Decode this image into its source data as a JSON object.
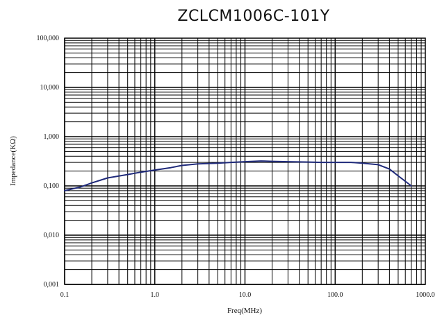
{
  "chart_data": {
    "type": "line",
    "title": "ZCLCM1006C-101Y",
    "xlabel": "Freq(MHz)",
    "ylabel": "Impedance(KΩ)",
    "x_scale": "log",
    "y_scale": "log",
    "xlim": [
      0.1,
      1000
    ],
    "ylim": [
      0.001,
      100
    ],
    "grid": true,
    "x_ticks": [
      0.1,
      1,
      10,
      100,
      1000
    ],
    "x_tick_labels": [
      "0.1",
      "1.0",
      "10.0",
      "100.0",
      "1000.0"
    ],
    "y_ticks": [
      0.001,
      0.01,
      0.1,
      1,
      10,
      100
    ],
    "y_tick_labels": [
      "0,001",
      "0,010",
      "0,100",
      "1,000",
      "10,000",
      "100,000"
    ],
    "series": [
      {
        "color": "#1f2a7a",
        "x": [
          0.1,
          0.15,
          0.2,
          0.3,
          0.5,
          0.7,
          1,
          1.5,
          2,
          3,
          5,
          7,
          10,
          15,
          20,
          30,
          50,
          70,
          100,
          150,
          200,
          300,
          400,
          500,
          700
        ],
        "y": [
          0.08,
          0.095,
          0.115,
          0.145,
          0.17,
          0.19,
          0.21,
          0.235,
          0.26,
          0.28,
          0.29,
          0.3,
          0.31,
          0.32,
          0.315,
          0.31,
          0.305,
          0.3,
          0.3,
          0.3,
          0.29,
          0.27,
          0.22,
          0.16,
          0.1
        ]
      }
    ]
  }
}
